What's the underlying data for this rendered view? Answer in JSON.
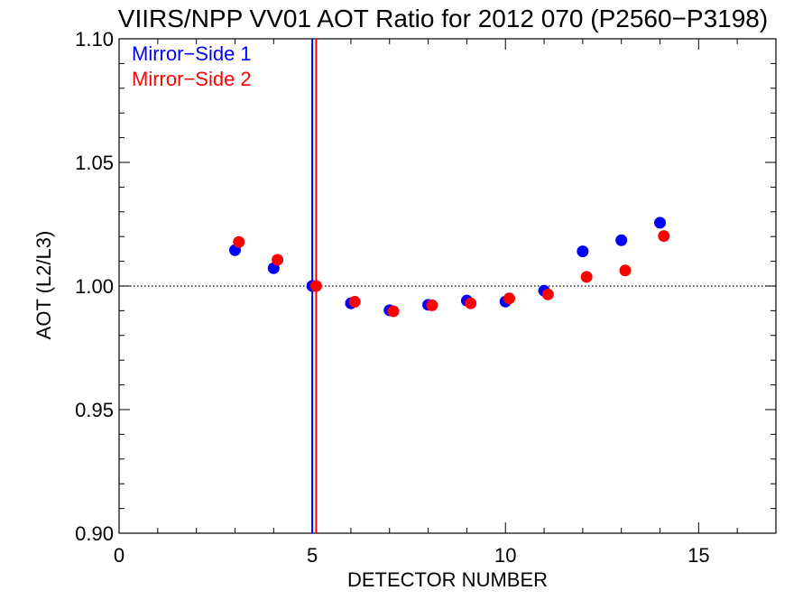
{
  "chart_data": {
    "type": "scatter",
    "title": "VIIRS/NPP VV01 AOT Ratio for 2012 070 (P2560−P3198)",
    "xlabel": "DETECTOR NUMBER",
    "ylabel": "AOT (L2/L3)",
    "xlim": [
      0,
      17
    ],
    "ylim": [
      0.9,
      1.1
    ],
    "xticks": [
      0,
      5,
      10,
      15
    ],
    "xtick_labels": [
      "0",
      "5",
      "10",
      "15"
    ],
    "yticks": [
      0.9,
      0.95,
      1.0,
      1.05,
      1.1
    ],
    "ytick_labels": [
      "0.90",
      "0.95",
      "1.00",
      "1.05",
      "1.10"
    ],
    "grid": false,
    "reference_line_y": 1.0,
    "legend_position": "top-left",
    "series": [
      {
        "name": "Mirror−Side 1",
        "color": "#0000ff",
        "marker_line_x": 5,
        "x": [
          3,
          4,
          5,
          6,
          7,
          8,
          9,
          10,
          11,
          12,
          13,
          14
        ],
        "y": [
          1.0145,
          1.0072,
          1.0,
          0.993,
          0.9902,
          0.9924,
          0.9941,
          0.9937,
          0.9981,
          1.014,
          1.0185,
          1.0256
        ]
      },
      {
        "name": "Mirror−Side 2",
        "color": "#ff0000",
        "marker_line_x": 5.1,
        "x": [
          3.1,
          4.1,
          5.1,
          6.1,
          7.1,
          8.1,
          9.1,
          10.1,
          11.1,
          12.1,
          13.1,
          14.1
        ],
        "y": [
          1.0178,
          1.0106,
          1.0,
          0.9936,
          0.9898,
          0.9922,
          0.993,
          0.995,
          0.9966,
          1.0037,
          1.0063,
          1.0202
        ]
      }
    ]
  }
}
